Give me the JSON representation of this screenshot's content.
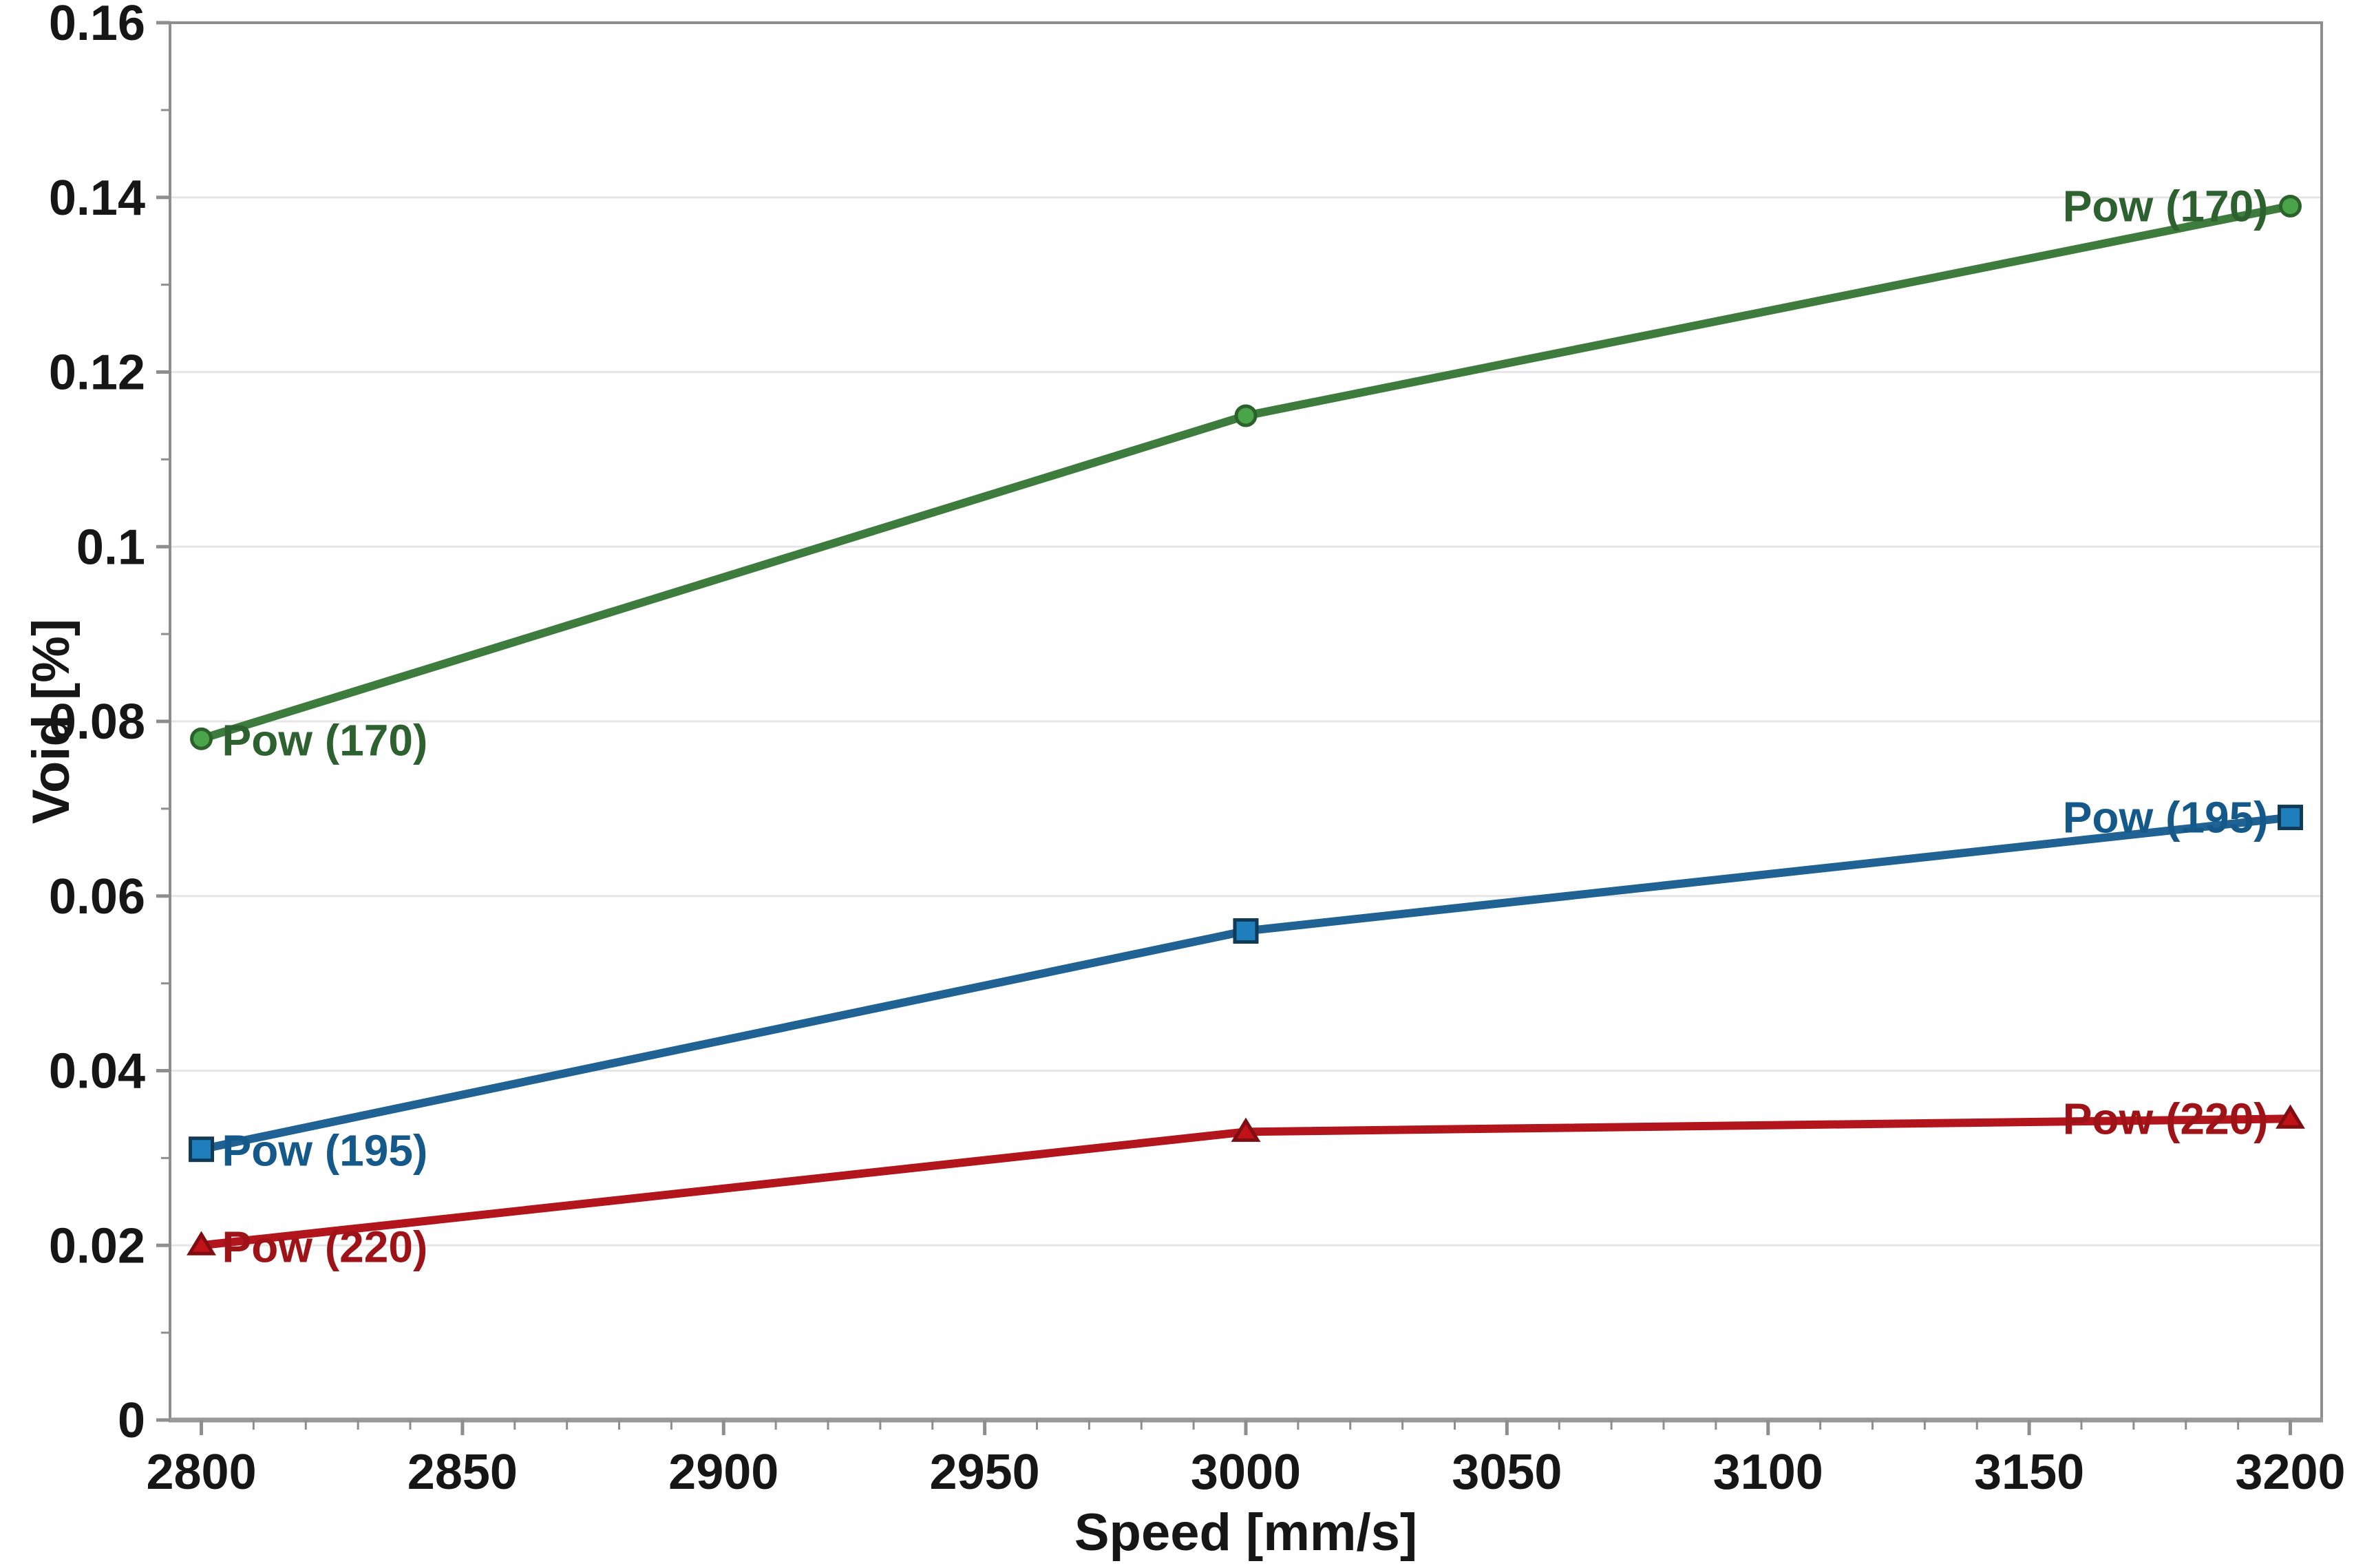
{
  "chart_data": {
    "type": "line",
    "title": "",
    "xlabel": "Speed [mm/s]",
    "ylabel": "Void [%]",
    "xlim": [
      2794,
      3206
    ],
    "ylim": [
      0,
      0.16
    ],
    "grid": "horizontal-major-only",
    "legend_position": "inline-line-end-labels",
    "x_ticks": [
      {
        "v": 2800,
        "label": "2800"
      },
      {
        "v": 2850,
        "label": "2850"
      },
      {
        "v": 2900,
        "label": "2900"
      },
      {
        "v": 2950,
        "label": "2950"
      },
      {
        "v": 3000,
        "label": "3000"
      },
      {
        "v": 3050,
        "label": "3050"
      },
      {
        "v": 3100,
        "label": "3100"
      },
      {
        "v": 3150,
        "label": "3150"
      },
      {
        "v": 3200,
        "label": "3200"
      }
    ],
    "x_minor_step": 10,
    "y_ticks": [
      {
        "v": 0,
        "label": "0"
      },
      {
        "v": 0.02,
        "label": "0.02"
      },
      {
        "v": 0.04,
        "label": "0.04"
      },
      {
        "v": 0.06,
        "label": "0.06"
      },
      {
        "v": 0.08,
        "label": "0.08"
      },
      {
        "v": 0.1,
        "label": "0.1"
      },
      {
        "v": 0.12,
        "label": "0.12"
      },
      {
        "v": 0.14,
        "label": "0.14"
      },
      {
        "v": 0.16,
        "label": "0.16"
      }
    ],
    "y_minor_step": 0.01,
    "x": [
      2800,
      3000,
      3200
    ],
    "series": [
      {
        "name": "Pow (170)",
        "values": [
          0.078,
          0.115,
          0.139
        ],
        "marker": "circle",
        "line_color": "#3e7c3e",
        "marker_fill": "#4aa44a",
        "marker_stroke": "#2c612c",
        "label_color": "#2e6130",
        "start_label": "Pow (170)",
        "end_label": "Pow (170)"
      },
      {
        "name": "Pow (195)",
        "values": [
          0.031,
          0.056,
          0.069
        ],
        "marker": "square",
        "line_color": "#1f6293",
        "marker_fill": "#1f7fbc",
        "marker_stroke": "#103a56",
        "label_color": "#14598a",
        "start_label": "Pow (195)",
        "end_label": "Pow (195)"
      },
      {
        "name": "Pow (220)",
        "values": [
          0.02,
          0.033,
          0.0345
        ],
        "marker": "triangle-up",
        "line_color": "#b2151b",
        "marker_fill": "#c11218",
        "marker_stroke": "#7e0e12",
        "label_color": "#9e1317",
        "start_label": "Pow (220)",
        "end_label": "Pow (220)"
      }
    ]
  },
  "colors": {
    "background": "#ffffff",
    "grid": "#e6e6e6",
    "frame": "#8e8e8e",
    "axis": "#999999",
    "tick": "#8e8e8e",
    "text": "#161616"
  }
}
